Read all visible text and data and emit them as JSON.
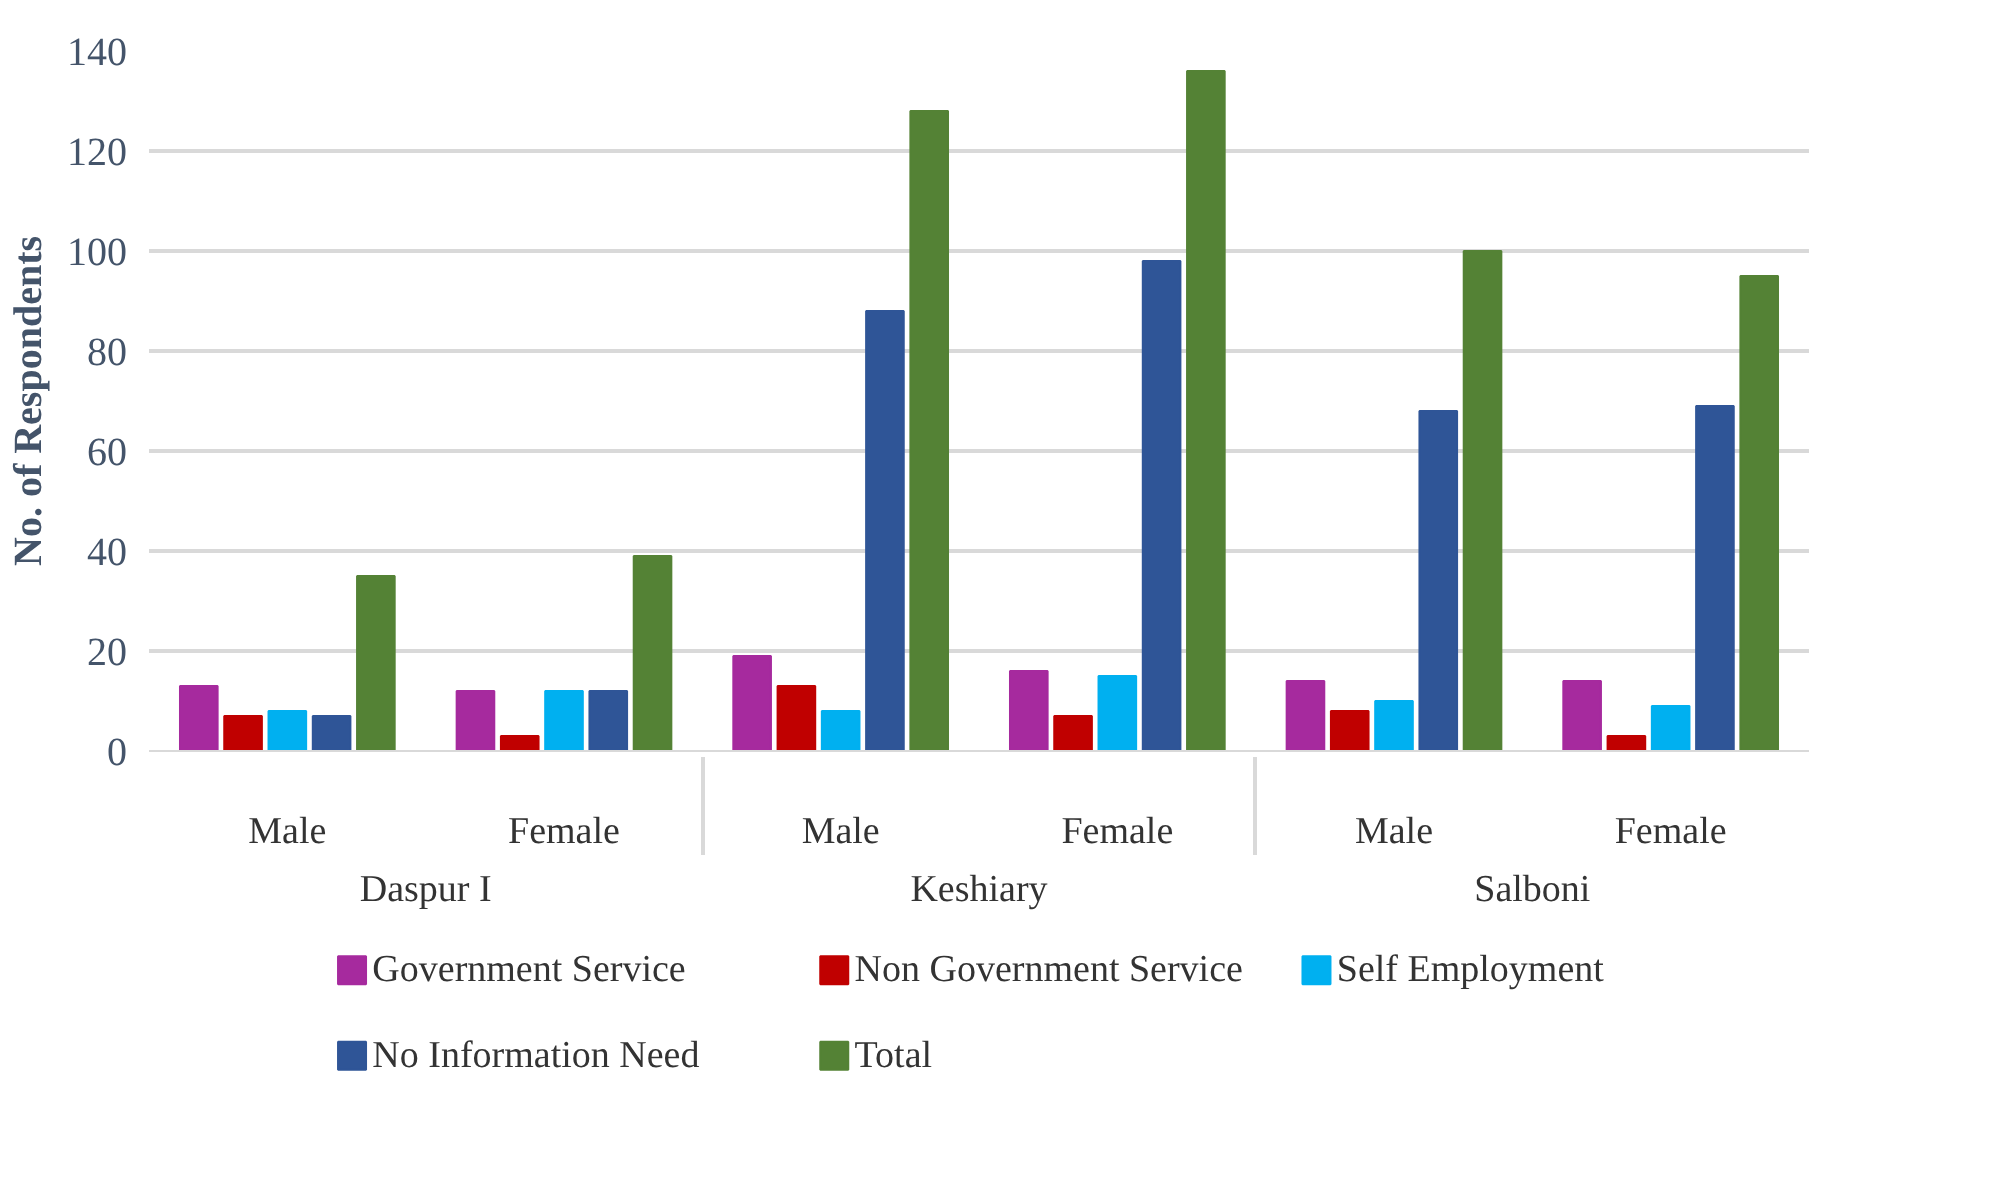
{
  "chart_data": {
    "type": "bar",
    "ylabel": "No. of Respondents",
    "categories": [
      "Male",
      "Female",
      "Male",
      "Female",
      "Male",
      "Female"
    ],
    "annotations": [
      "Daspur I",
      "Keshiary",
      "Salboni"
    ],
    "series": [
      {
        "name": "Government Service",
        "color": "#a62a9e",
        "values": [
          13,
          12,
          19,
          16,
          14,
          14
        ]
      },
      {
        "name": "Non Government Service",
        "color": "#c00000",
        "values": [
          7,
          3,
          13,
          7,
          8,
          3
        ]
      },
      {
        "name": "Self Employment",
        "color": "#00b0f0",
        "values": [
          8,
          12,
          8,
          15,
          10,
          9
        ]
      },
      {
        "name": "No Information Need",
        "color": "#2f5597",
        "values": [
          7,
          12,
          88,
          98,
          68,
          69
        ]
      },
      {
        "name": "Total",
        "color": "#548235",
        "values": [
          35,
          39,
          128,
          136,
          100,
          95
        ]
      }
    ],
    "ylim": [
      0,
      140
    ],
    "yticks": [
      0,
      20,
      40,
      60,
      80,
      100,
      120,
      140
    ],
    "grid": "y",
    "legend": "bottom"
  }
}
